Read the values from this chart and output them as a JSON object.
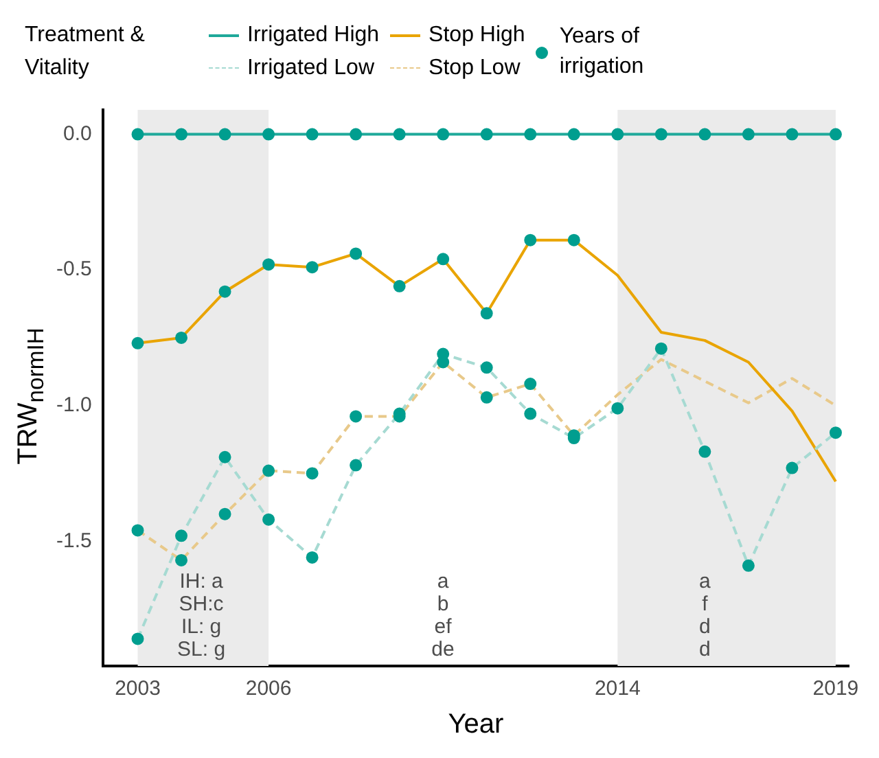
{
  "chart_data": {
    "type": "line",
    "xlabel": "Year",
    "ylabel": "TRW$_{normIH}$",
    "legend_title": "Treatment & Vitality",
    "legend": "top",
    "grid": false,
    "x": [
      2003,
      2004,
      2005,
      2006,
      2007,
      2008,
      2009,
      2010,
      2011,
      2012,
      2013,
      2014,
      2015,
      2016,
      2017,
      2018,
      2019
    ],
    "xlim": [
      2002.2,
      2019.3
    ],
    "xticks": [
      2003,
      2006,
      2014,
      2019
    ],
    "ylim": [
      -1.96,
      0.09
    ],
    "yticks": [
      {
        "value": 0,
        "label": "0.0"
      },
      {
        "value": -0.5,
        "label": "-0.5"
      },
      {
        "value": -1,
        "label": "-1.0"
      },
      {
        "value": -1.5,
        "label": "-1.5"
      }
    ],
    "bands": [
      {
        "axis": "x",
        "from": 2003,
        "to": 2006,
        "color": "#ebebeb"
      },
      {
        "axis": "x",
        "from": 2014,
        "to": 2019,
        "color": "#ebebeb"
      }
    ],
    "series": [
      {
        "name": "Irrigated High",
        "line_style": "solid",
        "marker": "none",
        "color": "#1fa99a",
        "values": [
          0,
          0,
          0,
          0,
          0,
          0,
          0,
          0,
          0,
          0,
          0,
          0,
          0,
          0,
          0,
          0,
          0
        ]
      },
      {
        "name": "Irrigated Low",
        "line_style": "dashed",
        "marker": "none",
        "color": "#a6dad2",
        "values": [
          -1.86,
          -1.48,
          -1.19,
          -1.42,
          -1.56,
          -1.22,
          -1.03,
          -0.81,
          -0.86,
          -1.03,
          -1.12,
          -1.01,
          -0.79,
          -1.17,
          -1.59,
          -1.23,
          -1.1
        ]
      },
      {
        "name": "Stop High",
        "line_style": "solid",
        "marker": "none",
        "color": "#e9a400",
        "values": [
          -0.77,
          -0.75,
          -0.58,
          -0.48,
          -0.49,
          -0.44,
          -0.56,
          -0.46,
          -0.66,
          -0.39,
          -0.39,
          -0.52,
          -0.73,
          -0.76,
          -0.84,
          -1.02,
          -1.28
        ]
      },
      {
        "name": "Stop Low",
        "line_style": "dashed",
        "marker": "none",
        "color": "#e8c98a",
        "values": [
          -1.46,
          -1.57,
          -1.4,
          -1.24,
          -1.25,
          -1.04,
          -1.04,
          -0.84,
          -0.97,
          -0.92,
          -1.11,
          -0.96,
          -0.83,
          -0.91,
          -0.99,
          -0.9,
          -1
        ]
      },
      {
        "name": "Years of irrigation",
        "type": "scatter",
        "marker": "circle",
        "color": "#009e8f",
        "x": [
          2003,
          2004,
          2005,
          2006,
          2007,
          2008,
          2009,
          2010,
          2011,
          2012,
          2013,
          2014,
          2015,
          2016,
          2017,
          2018,
          2019,
          2003,
          2004,
          2005,
          2006,
          2007,
          2008,
          2009,
          2010,
          2011,
          2012,
          2013,
          2014,
          2015,
          2016,
          2017,
          2018,
          2019,
          2003,
          2004,
          2005,
          2006,
          2007,
          2008,
          2009,
          2010,
          2011,
          2012,
          2013,
          2003,
          2004,
          2005,
          2006,
          2007,
          2008,
          2009,
          2010,
          2011,
          2012,
          2013
        ],
        "values": [
          0,
          0,
          0,
          0,
          0,
          0,
          0,
          0,
          0,
          0,
          0,
          0,
          0,
          0,
          0,
          0,
          0,
          -1.86,
          -1.48,
          -1.19,
          -1.42,
          -1.56,
          -1.22,
          -1.03,
          -0.81,
          -0.86,
          -1.03,
          -1.12,
          -1.01,
          -0.79,
          -1.17,
          -1.59,
          -1.23,
          -1.1,
          -0.77,
          -0.75,
          -0.58,
          -0.48,
          -0.49,
          -0.44,
          -0.56,
          -0.46,
          -0.66,
          -0.39,
          -0.39,
          -1.46,
          -1.57,
          -1.4,
          -1.24,
          -1.25,
          -1.04,
          -1.04,
          -0.84,
          -0.97,
          -0.92,
          -1.11
        ]
      }
    ],
    "annotations": [
      "IH: a\nSH:c\nIL: g\nSL: g",
      "a\nb\nef\nde",
      "a\nf\nd\nd"
    ]
  }
}
